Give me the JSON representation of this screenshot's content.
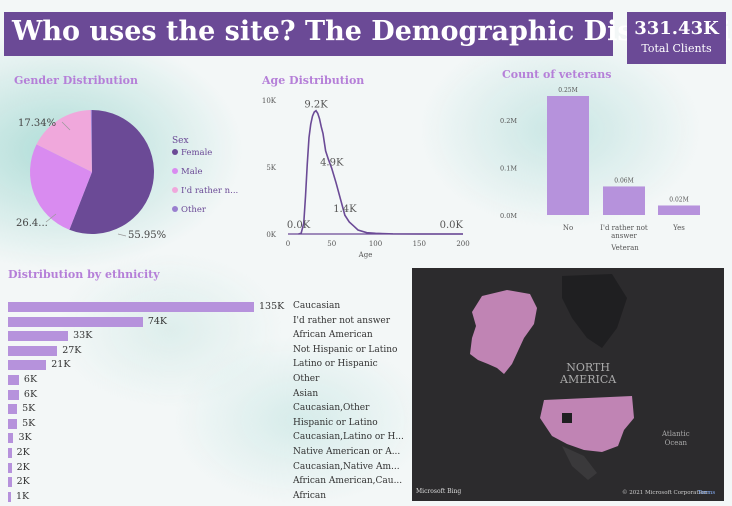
{
  "title": "Who uses the site? The Demographic Distribution",
  "kpi": {
    "value": "331.43K",
    "label": "Total Clients"
  },
  "colors": {
    "primary": "#6b4a96",
    "accent": "#b692dc",
    "male": "#d98bf0",
    "pink": "#f0a8dc"
  },
  "chart_data": [
    {
      "type": "pie",
      "title": "Gender Distribution",
      "legend_title": "Sex",
      "legend_position": "right",
      "categories": [
        "Female",
        "Male",
        "I'd rather n...",
        "Other"
      ],
      "values": [
        55.95,
        26.4,
        17.34,
        0.31
      ],
      "labels": [
        "55.95%",
        "26.4...",
        "17.34%",
        ""
      ]
    },
    {
      "type": "line",
      "title": "Age Distribution",
      "xlabel": "Age",
      "xticks": [
        "0",
        "50",
        "100",
        "150",
        "200"
      ],
      "yticks": [
        "0K",
        "5K",
        "10K"
      ],
      "xlim": [
        0,
        200
      ],
      "ylim": [
        0,
        10000
      ],
      "x": [
        12,
        15,
        18,
        20,
        22,
        24,
        26,
        28,
        30,
        32,
        34,
        36,
        38,
        40,
        43,
        46,
        50,
        55,
        60,
        65,
        70,
        75,
        80,
        90,
        100,
        120,
        150,
        200
      ],
      "y": [
        0,
        50,
        800,
        2800,
        5200,
        7200,
        8200,
        8800,
        9100,
        9200,
        9000,
        8600,
        8000,
        7500,
        6200,
        5600,
        4900,
        3800,
        2600,
        1400,
        900,
        600,
        300,
        100,
        50,
        10,
        0,
        0
      ],
      "annotations": [
        {
          "x": 32,
          "y": 9200,
          "text": "9.2K"
        },
        {
          "x": 50,
          "y": 4900,
          "text": "4.9K"
        },
        {
          "x": 65,
          "y": 1400,
          "text": "1.4K"
        },
        {
          "x": 12,
          "y": 0,
          "text": "0.0K"
        },
        {
          "x": 200,
          "y": 0,
          "text": "0.0K"
        }
      ]
    },
    {
      "type": "bar",
      "title": "Count of veterans",
      "xlabel": "Veteran",
      "categories": [
        "No",
        "I'd rather not answer",
        "Yes"
      ],
      "category_lines": [
        [
          "No"
        ],
        [
          "I'd rather not",
          "answer"
        ],
        [
          "Yes"
        ]
      ],
      "values": [
        0.25,
        0.06,
        0.02
      ],
      "value_labels": [
        "0.25M",
        "0.06M",
        "0.02M"
      ],
      "yticks": [
        "0.0M",
        "0.1M",
        "0.2M"
      ],
      "ylim": [
        0,
        0.25
      ]
    },
    {
      "type": "bar",
      "orientation": "horizontal",
      "title": "Distribution by ethnicity",
      "categories": [
        "Caucasian",
        "I'd rather not answer",
        "African American",
        "Not Hispanic or Latino",
        "Latino or Hispanic",
        "Other",
        "Asian",
        "Caucasian,Other",
        "Hispanic or Latino",
        "Caucasian,Latino or H...",
        "Native American or A...",
        "Caucasian,Native Am...",
        "African American,Cau...",
        "African"
      ],
      "values": [
        135,
        74,
        33,
        27,
        21,
        6,
        6,
        5,
        5,
        3,
        2,
        2,
        2,
        1
      ],
      "value_labels": [
        "135K",
        "74K",
        "33K",
        "27K",
        "21K",
        "6K",
        "6K",
        "5K",
        "5K",
        "3K",
        "2K",
        "2K",
        "2K",
        "1K"
      ]
    }
  ],
  "map": {
    "label": "NORTH\nAMERICA",
    "ocean_label": "Atlantic\nOcean",
    "attribution": "© 2021 Microsoft Corporation",
    "terms": "Terms",
    "logo": "Microsoft Bing"
  }
}
